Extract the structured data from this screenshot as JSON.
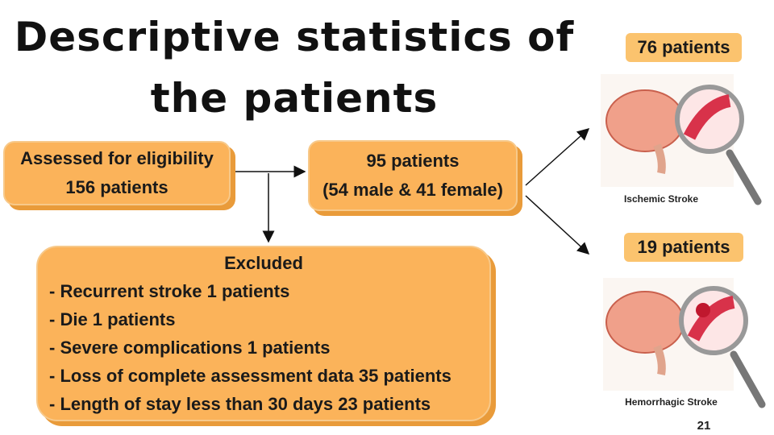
{
  "title": "Descriptive statistics of the patients",
  "assessed": {
    "line1": "Assessed for eligibility",
    "line2": "156 patients"
  },
  "included": {
    "line1": "95 patients",
    "line2": "(54 male & 41 female)"
  },
  "excluded": {
    "heading": "Excluded",
    "items": [
      "- Recurrent stroke 1 patients",
      "- Die 1 patients",
      "- Severe complications 1 patients",
      "- Loss of complete assessment data 35 patients",
      "- Length of stay less than 30 days 23 patients"
    ]
  },
  "ischemic": {
    "count": "76 patients",
    "label": "Ischemic Stroke"
  },
  "hemorrhagic": {
    "count": "19 patients",
    "label": "Hemorrhagic Stroke"
  },
  "page_number": "21"
}
